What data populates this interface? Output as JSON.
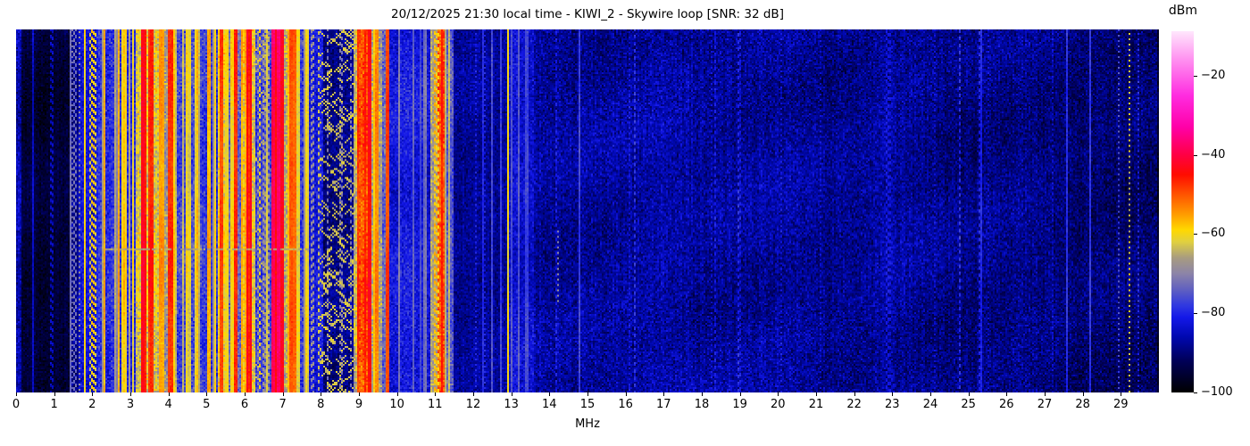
{
  "chart_data": {
    "type": "heatmap",
    "subtype": "radio-spectrum-waterfall",
    "title": "20/12/2025 21:30 local time - KIWI_2 - Skywire loop [SNR: 32 dB]",
    "timestamp_local": "20/12/2025 21:30",
    "station": "KIWI_2",
    "antenna": "Skywire loop",
    "snr_label": "SNR: 32 dB",
    "xlabel": "MHz",
    "x_range_mhz": [
      0,
      30
    ],
    "x_ticks": [
      "0",
      "1",
      "2",
      "3",
      "4",
      "5",
      "6",
      "7",
      "8",
      "9",
      "10",
      "11",
      "12",
      "13",
      "14",
      "15",
      "16",
      "17",
      "18",
      "19",
      "20",
      "21",
      "22",
      "23",
      "24",
      "25",
      "26",
      "27",
      "28",
      "29"
    ],
    "grid": false,
    "colorbar": {
      "label": "dBm",
      "tick_labels": [
        "−20",
        "−40",
        "−60",
        "−80",
        "−100"
      ],
      "tick_values": [
        -20,
        -40,
        -60,
        -80,
        -100
      ],
      "value_range": [
        -100,
        -8.8
      ],
      "stops": [
        {
          "v": -100,
          "c": "#000000"
        },
        {
          "v": -92,
          "c": "#000058"
        },
        {
          "v": -86,
          "c": "#0008b0"
        },
        {
          "v": -81,
          "c": "#1418e8"
        },
        {
          "v": -78,
          "c": "#3038e0"
        },
        {
          "v": -74,
          "c": "#6060c0"
        },
        {
          "v": -70,
          "c": "#8c84a8"
        },
        {
          "v": -66,
          "c": "#a89c80"
        },
        {
          "v": -62,
          "c": "#e0d040"
        },
        {
          "v": -59,
          "c": "#ffd800"
        },
        {
          "v": -55,
          "c": "#ff9c00"
        },
        {
          "v": -50,
          "c": "#ff5400"
        },
        {
          "v": -45,
          "c": "#ff0c00"
        },
        {
          "v": -40,
          "c": "#ff0044"
        },
        {
          "v": -33,
          "c": "#ff00a8"
        },
        {
          "v": -25,
          "c": "#ff2ce0"
        },
        {
          "v": -16,
          "c": "#ff90f0"
        },
        {
          "v": -9,
          "c": "#ffe4fc"
        }
      ]
    },
    "bands": [
      {
        "f0": 0.0,
        "f1": 0.12,
        "base": -86,
        "sigma": 4.0,
        "d": 0,
        "lv": [],
        "dash": false
      },
      {
        "f0": 0.12,
        "f1": 1.42,
        "base": -95,
        "sigma": 3.0,
        "d": 1.5,
        "lv": [
          -84
        ],
        "dash": true
      },
      {
        "f0": 1.42,
        "f1": 1.62,
        "base": -88,
        "sigma": 3.5,
        "d": 10,
        "lv": [
          -72,
          -66
        ],
        "dash": true
      },
      {
        "f0": 1.62,
        "f1": 2.1,
        "base": -83,
        "sigma": 4.0,
        "d": 13,
        "lv": [
          -62,
          -58,
          -70
        ],
        "dash": true
      },
      {
        "f0": 2.1,
        "f1": 3.15,
        "base": -79,
        "sigma": 4.5,
        "d": 16,
        "lv": [
          -60,
          -57,
          -66,
          -71
        ],
        "dash": false
      },
      {
        "f0": 3.15,
        "f1": 3.75,
        "base": -62,
        "sigma": 5.0,
        "d": 18,
        "lv": [
          -47,
          -44,
          -52,
          -57
        ],
        "dash": false
      },
      {
        "f0": 3.75,
        "f1": 4.1,
        "base": -67,
        "sigma": 5.0,
        "d": 16,
        "lv": [
          -50,
          -56,
          -46
        ],
        "dash": false
      },
      {
        "f0": 4.1,
        "f1": 4.75,
        "base": -76,
        "sigma": 4.5,
        "d": 14,
        "lv": [
          -59,
          -63,
          -69
        ],
        "dash": false
      },
      {
        "f0": 4.75,
        "f1": 5.28,
        "base": -78,
        "sigma": 4.5,
        "d": 12,
        "lv": [
          -61,
          -67,
          -57
        ],
        "dash": false
      },
      {
        "f0": 5.28,
        "f1": 5.5,
        "base": -60,
        "sigma": 4.0,
        "d": 12,
        "lv": [
          -47,
          -51
        ],
        "dash": false
      },
      {
        "f0": 5.5,
        "f1": 5.95,
        "base": -73,
        "sigma": 4.5,
        "d": 16,
        "lv": [
          -57,
          -61,
          -49
        ],
        "dash": false
      },
      {
        "f0": 5.95,
        "f1": 6.28,
        "base": -61,
        "sigma": 5.0,
        "d": 14,
        "lv": [
          -44,
          -49,
          -55
        ],
        "dash": false
      },
      {
        "f0": 6.28,
        "f1": 6.68,
        "base": -77,
        "sigma": 4.5,
        "d": 13,
        "lv": [
          -61,
          -57,
          -67
        ],
        "dash": true
      },
      {
        "f0": 6.68,
        "f1": 6.98,
        "base": -39,
        "sigma": 1.8,
        "d": 5,
        "lv": [
          -35,
          -43
        ],
        "dash": false
      },
      {
        "f0": 6.98,
        "f1": 7.3,
        "base": -65,
        "sigma": 5.0,
        "d": 12,
        "lv": [
          -51,
          -57
        ],
        "dash": false
      },
      {
        "f0": 7.3,
        "f1": 7.65,
        "base": -77,
        "sigma": 4.5,
        "d": 10,
        "lv": [
          -61,
          -67
        ],
        "dash": false
      },
      {
        "f0": 7.65,
        "f1": 8.05,
        "base": -81,
        "sigma": 4.0,
        "d": 8,
        "lv": [
          -63,
          -70
        ],
        "dash": true
      },
      {
        "f0": 8.05,
        "f1": 8.88,
        "base": -89,
        "sigma": 3.5,
        "d": 4,
        "lv": [
          -72
        ],
        "dash": true
      },
      {
        "f0": 8.88,
        "f1": 9.0,
        "base": -64,
        "sigma": 5.0,
        "d": 12,
        "lv": [
          -53,
          -57,
          -47
        ],
        "dash": false
      },
      {
        "f0": 9.0,
        "f1": 9.32,
        "base": -50,
        "sigma": 4.0,
        "d": 10,
        "lv": [
          -43,
          -47
        ],
        "dash": false
      },
      {
        "f0": 9.32,
        "f1": 9.6,
        "base": -67,
        "sigma": 5.0,
        "d": 10,
        "lv": [
          -55,
          -59
        ],
        "dash": false
      },
      {
        "f0": 9.6,
        "f1": 9.78,
        "base": -74,
        "sigma": 4.5,
        "d": 8,
        "lv": [
          -58,
          -50
        ],
        "dash": false
      },
      {
        "f0": 9.78,
        "f1": 10.88,
        "base": -83,
        "sigma": 4.0,
        "d": 3,
        "lv": [
          -72,
          -76
        ],
        "dash": false
      },
      {
        "f0": 10.88,
        "f1": 11.07,
        "base": -67,
        "sigma": 4.0,
        "d": 9,
        "lv": [
          -59,
          -55
        ],
        "dash": true
      },
      {
        "f0": 11.07,
        "f1": 11.24,
        "base": -51,
        "sigma": 4.0,
        "d": 7,
        "lv": [
          -45,
          -49
        ],
        "dash": false
      },
      {
        "f0": 11.24,
        "f1": 11.5,
        "base": -75,
        "sigma": 4.0,
        "d": 8,
        "lv": [
          -63,
          -69
        ],
        "dash": false
      },
      {
        "f0": 11.5,
        "f1": 12.9,
        "base": -88,
        "sigma": 3.5,
        "d": 2,
        "lv": [
          -78
        ],
        "dash": false
      },
      {
        "f0": 12.9,
        "f1": 13.6,
        "base": -85,
        "sigma": 4.0,
        "d": 3,
        "lv": [
          -75
        ],
        "dash": false
      },
      {
        "f0": 13.6,
        "f1": 30.0,
        "base": -88,
        "base2": -91,
        "sigma": 4.5,
        "d": 0.7,
        "lv": [
          -80
        ],
        "dash": true
      }
    ],
    "carrier_lines": [
      {
        "f": 1.46,
        "level": -72,
        "dash": true
      },
      {
        "f": 1.64,
        "level": -68,
        "dash": true
      },
      {
        "f": 1.8,
        "level": -59
      },
      {
        "f": 9.68,
        "level": -49
      },
      {
        "f": 10.02,
        "level": -72
      },
      {
        "f": 10.42,
        "level": -74
      },
      {
        "f": 10.68,
        "level": -73
      },
      {
        "f": 12.06,
        "level": -80,
        "dash": true
      },
      {
        "f": 12.3,
        "level": -80,
        "dash": true
      },
      {
        "f": 12.87,
        "level": -60
      },
      {
        "f": 13.35,
        "level": -77,
        "w": 2
      },
      {
        "f": 14.2,
        "level": -68,
        "dash": true,
        "y0": 0.55,
        "y1": 0.75
      },
      {
        "f": 14.76,
        "level": -77
      },
      {
        "f": 16.1,
        "level": -81,
        "dash": true
      },
      {
        "f": 18.25,
        "level": -82,
        "dash": true
      },
      {
        "f": 20.05,
        "level": -81,
        "dash": true
      },
      {
        "f": 21.1,
        "level": -82,
        "dash": true
      },
      {
        "f": 24.1,
        "level": -82,
        "dash": true
      },
      {
        "f": 25.5,
        "level": -83,
        "dash": true
      },
      {
        "f": 27.2,
        "level": -83,
        "dash": true
      },
      {
        "f": 28.92,
        "level": -75,
        "dash": true
      },
      {
        "f": 29.2,
        "level": -62,
        "dash": true
      },
      {
        "f": 29.42,
        "level": -79,
        "dash": true
      }
    ],
    "swaths": [
      {
        "f": 10.3,
        "w": 0.8,
        "amp": 1.5
      },
      {
        "f": 13.3,
        "w": 0.5,
        "amp": 2.0
      },
      {
        "f": 16.8,
        "w": 1.4,
        "amp": 2.0
      },
      {
        "f": 19.9,
        "w": 1.3,
        "amp": 2.0
      },
      {
        "f": 23.0,
        "w": 1.1,
        "amp": 2.6
      },
      {
        "f": 26.3,
        "w": 1.2,
        "amp": 1.6
      }
    ],
    "diag_patches": [
      {
        "f0": 7.95,
        "f1": 8.85,
        "count": 300,
        "level": -63,
        "len": 3
      },
      {
        "f0": 6.3,
        "f1": 6.65,
        "count": 70,
        "level": -64,
        "len": 2
      }
    ],
    "h_streaks": [
      {
        "row_frac": 0.602,
        "f0": 2.35,
        "f1": 7.85,
        "level": -66
      }
    ]
  }
}
